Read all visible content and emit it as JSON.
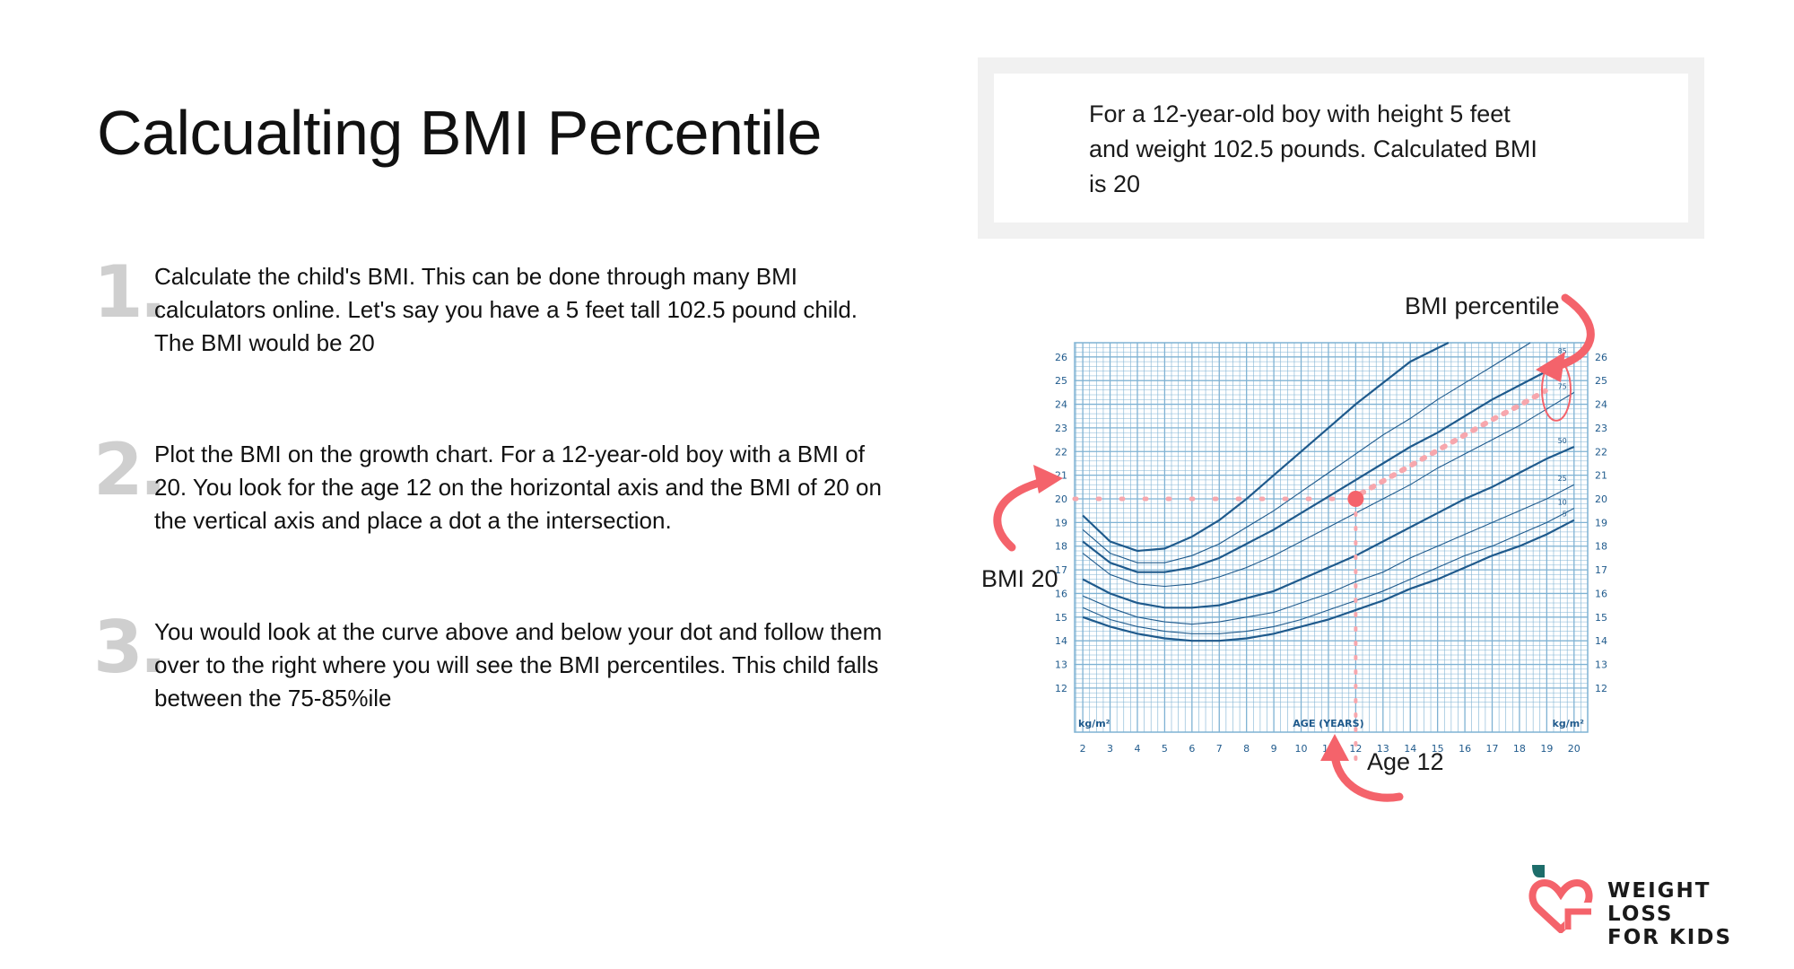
{
  "page": {
    "title": "Calcualting BMI Percentile",
    "info_box": "For a 12-year-old boy with height 5 feet and weight 102.5 pounds. Calculated BMI is 20"
  },
  "steps": [
    {
      "number": "1.",
      "text": "Calculate the child's BMI. This can be done through many BMI calculators online.  Let's say you have a 5 feet tall 102.5 pound child. The BMI would be 20"
    },
    {
      "number": "2.",
      "text": "Plot the BMI on the growth chart. For a 12-year-old boy with a BMI of 20. You look for the age 12 on the horizontal axis and the BMI of 20 on the vertical axis and place a dot a the intersection."
    },
    {
      "number": "3.",
      "text": "You would look at the curve above and below your dot and follow them over to the right where you will see the BMI percentiles. This child falls between the 75-85%ile"
    }
  ],
  "annotations": {
    "bmi_percentile": "BMI percentile",
    "bmi_20": "BMI 20",
    "age_12": "Age 12"
  },
  "logo": {
    "line1": "WEIGHT LOSS",
    "line2": "FOR KIDS"
  },
  "colors": {
    "accent": "#f4636b",
    "chart_line": "#1f5a8c",
    "grid": "#7fb2d3",
    "logo_teal": "#1d6d6a"
  },
  "chart_data": {
    "type": "line",
    "xlabel": "AGE (YEARS)",
    "ylabel_left": "kg/m²",
    "ylabel_right": "kg/m²",
    "xlim": [
      1.7,
      20.5
    ],
    "ylim": [
      11.2,
      26.6
    ],
    "x_ticks": [
      2,
      3,
      4,
      5,
      6,
      7,
      8,
      9,
      10,
      11,
      12,
      13,
      14,
      15,
      16,
      17,
      18,
      19,
      20
    ],
    "y_ticks": [
      12,
      13,
      14,
      15,
      16,
      17,
      18,
      19,
      20,
      21,
      22,
      23,
      24,
      25,
      26
    ],
    "series": [
      {
        "name": "95",
        "x": [
          2,
          3,
          4,
          5,
          6,
          7,
          8,
          9,
          10,
          11,
          12,
          13,
          14,
          15.4
        ],
        "y": [
          19.3,
          18.2,
          17.8,
          17.9,
          18.4,
          19.1,
          20.0,
          21.0,
          22.0,
          23.0,
          24.0,
          24.9,
          25.8,
          26.6
        ]
      },
      {
        "name": "90",
        "x": [
          2,
          3,
          4,
          5,
          6,
          7,
          8,
          9,
          10,
          11,
          12,
          13,
          14,
          15,
          16,
          17,
          18.4
        ],
        "y": [
          18.7,
          17.7,
          17.3,
          17.3,
          17.6,
          18.1,
          18.8,
          19.5,
          20.3,
          21.1,
          21.9,
          22.7,
          23.4,
          24.2,
          24.9,
          25.6,
          26.6
        ]
      },
      {
        "name": "85",
        "x": [
          2,
          3,
          4,
          5,
          6,
          7,
          8,
          9,
          10,
          11,
          12,
          13,
          14,
          15,
          16,
          17,
          18,
          19,
          20
        ],
        "y": [
          18.2,
          17.3,
          16.9,
          16.9,
          17.1,
          17.5,
          18.1,
          18.7,
          19.4,
          20.1,
          20.8,
          21.5,
          22.2,
          22.8,
          23.5,
          24.2,
          24.8,
          25.4,
          26.0
        ]
      },
      {
        "name": "75",
        "x": [
          2,
          3,
          4,
          5,
          6,
          7,
          8,
          9,
          10,
          11,
          12,
          13,
          14,
          15,
          16,
          17,
          18,
          19,
          20
        ],
        "y": [
          17.7,
          16.8,
          16.4,
          16.3,
          16.4,
          16.7,
          17.1,
          17.6,
          18.2,
          18.8,
          19.4,
          20.0,
          20.6,
          21.3,
          21.9,
          22.5,
          23.1,
          23.8,
          24.5
        ]
      },
      {
        "name": "50",
        "x": [
          2,
          3,
          4,
          5,
          6,
          7,
          8,
          9,
          10,
          11,
          12,
          13,
          14,
          15,
          16,
          17,
          18,
          19,
          20
        ],
        "y": [
          16.6,
          16.0,
          15.6,
          15.4,
          15.4,
          15.5,
          15.8,
          16.1,
          16.6,
          17.1,
          17.6,
          18.2,
          18.8,
          19.4,
          20.0,
          20.5,
          21.1,
          21.7,
          22.2
        ]
      },
      {
        "name": "25",
        "x": [
          2,
          3,
          4,
          5,
          6,
          7,
          8,
          9,
          10,
          11,
          12,
          13,
          14,
          15,
          16,
          17,
          18,
          19,
          20
        ],
        "y": [
          15.9,
          15.4,
          15.0,
          14.8,
          14.7,
          14.8,
          15.0,
          15.2,
          15.6,
          16.0,
          16.5,
          16.9,
          17.5,
          18.0,
          18.5,
          19.0,
          19.5,
          20.0,
          20.6
        ]
      },
      {
        "name": "10",
        "x": [
          2,
          3,
          4,
          5,
          6,
          7,
          8,
          9,
          10,
          11,
          12,
          13,
          14,
          15,
          16,
          17,
          18,
          19,
          20
        ],
        "y": [
          15.4,
          14.9,
          14.6,
          14.4,
          14.3,
          14.3,
          14.4,
          14.6,
          14.9,
          15.3,
          15.7,
          16.1,
          16.6,
          17.1,
          17.6,
          18.0,
          18.5,
          19.0,
          19.6
        ]
      },
      {
        "name": "5",
        "x": [
          2,
          3,
          4,
          5,
          6,
          7,
          8,
          9,
          10,
          11,
          12,
          13,
          14,
          15,
          16,
          17,
          18,
          19,
          20
        ],
        "y": [
          15.0,
          14.6,
          14.3,
          14.1,
          14.0,
          14.0,
          14.1,
          14.3,
          14.6,
          14.9,
          15.3,
          15.7,
          16.2,
          16.6,
          17.1,
          17.6,
          18.0,
          18.5,
          19.1
        ]
      }
    ],
    "highlight_point": {
      "x": 12,
      "y": 20
    }
  }
}
